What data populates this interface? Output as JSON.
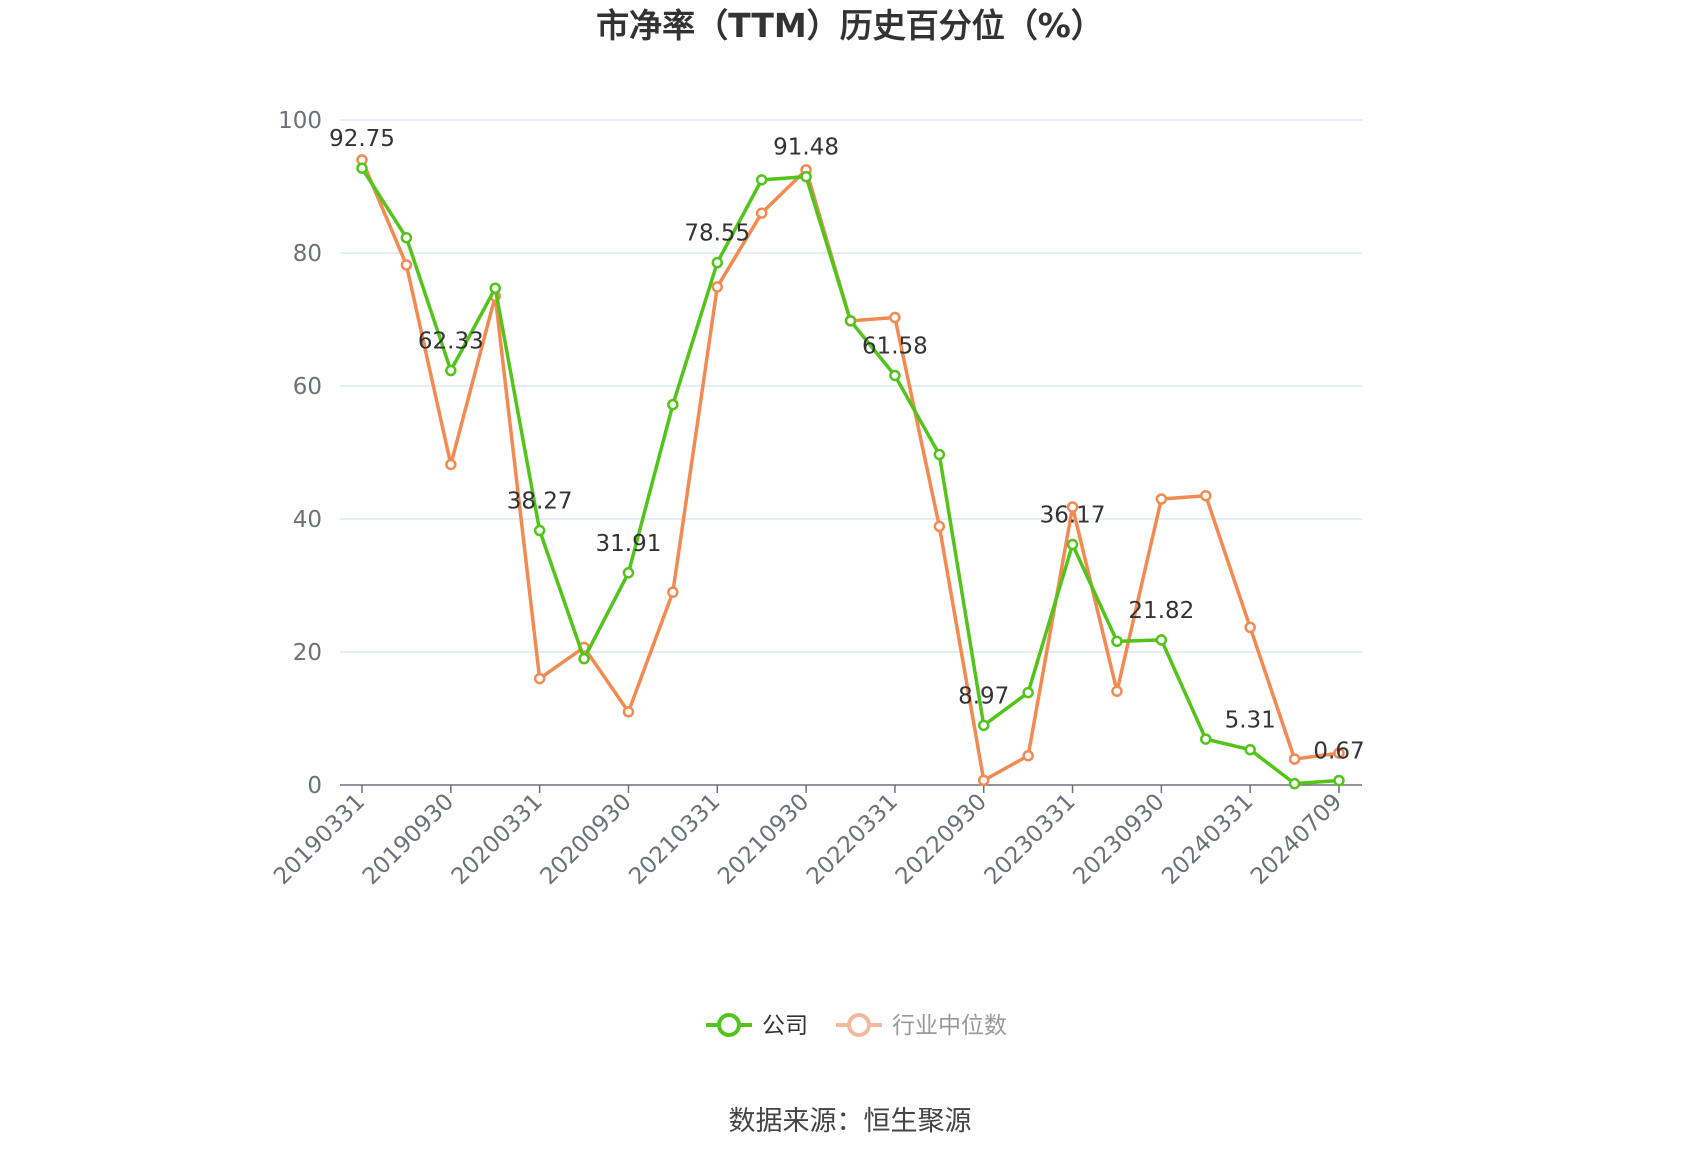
{
  "chart_data": {
    "type": "line",
    "title": "市净率（TTM）历史百分位（%）",
    "x": [
      "20190331",
      "20190630",
      "20190930",
      "20191231",
      "20200331",
      "20200630",
      "20200930",
      "20201231",
      "20210331",
      "20210630",
      "20210930",
      "20211231",
      "20220331",
      "20220630",
      "20220930",
      "20221231",
      "20230331",
      "20230630",
      "20230930",
      "20231231",
      "20240331",
      "20240630",
      "20240709"
    ],
    "x_tick_labels": [
      "20190331",
      "20190930",
      "20200331",
      "20200930",
      "20210331",
      "20210930",
      "20220331",
      "20220930",
      "20230331",
      "20230930",
      "20240331",
      "20240709"
    ],
    "y_ticks": [
      0,
      20,
      40,
      60,
      80,
      100
    ],
    "ylim": [
      0,
      100
    ],
    "grid": true,
    "legend_position": "bottom-center",
    "series": [
      {
        "name": "公司",
        "color": "#52c41a",
        "values": [
          92.75,
          82.3,
          62.33,
          74.7,
          38.27,
          19.0,
          31.91,
          57.2,
          78.55,
          91.0,
          91.48,
          69.8,
          61.58,
          49.7,
          8.97,
          13.9,
          36.17,
          21.6,
          21.82,
          6.9,
          5.31,
          0.2,
          0.67
        ],
        "labels": {
          "0": "92.75",
          "2": "62.33",
          "4": "38.27",
          "6": "31.91",
          "8": "78.55",
          "10": "91.48",
          "12": "61.58",
          "14": "8.97",
          "16": "36.17",
          "18": "21.82",
          "20": "5.31",
          "22": "0.67"
        }
      },
      {
        "name": "行业中位数",
        "color": "#f28a52",
        "values": [
          94.0,
          78.2,
          48.2,
          73.5,
          16.0,
          20.7,
          11.0,
          29.0,
          74.9,
          86.0,
          92.5,
          69.8,
          70.3,
          38.9,
          0.7,
          4.4,
          41.8,
          14.1,
          43.0,
          43.5,
          23.7,
          3.9,
          4.8
        ]
      }
    ]
  },
  "legend": {
    "company": "公司",
    "industry": "行业中位数"
  },
  "source": "数据来源：恒生聚源"
}
